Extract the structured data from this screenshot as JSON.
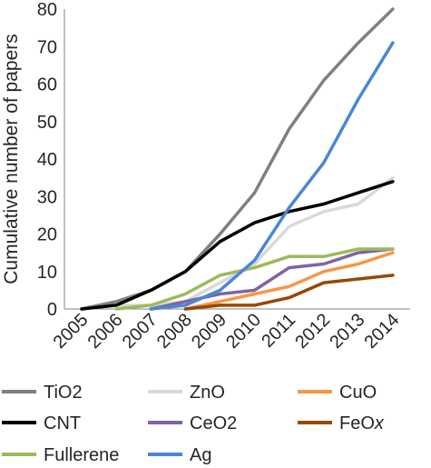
{
  "chart_data": {
    "type": "line",
    "title": "",
    "xlabel": "",
    "ylabel": "Cumulative number of papers",
    "ylim": [
      0,
      80
    ],
    "yticks": [
      0,
      10,
      20,
      30,
      40,
      50,
      60,
      70,
      80
    ],
    "grid": false,
    "legend_position": "bottom",
    "categories": [
      "2005",
      "2006",
      "2007",
      "2008",
      "2009",
      "2010",
      "2011",
      "2012",
      "2013",
      "2014"
    ],
    "series": [
      {
        "name": "TiO2",
        "color": "#808080",
        "values": [
          0,
          2,
          5,
          10,
          20,
          31,
          48,
          61,
          71,
          80
        ]
      },
      {
        "name": "ZnO",
        "color": "#d9d9d9",
        "values": [
          0,
          1,
          1,
          2,
          7,
          12,
          22,
          26,
          28,
          35
        ]
      },
      {
        "name": "CuO",
        "color": "#f79646",
        "values": [
          null,
          null,
          null,
          0,
          2,
          4,
          6,
          10,
          12,
          15
        ]
      },
      {
        "name": "CNT",
        "color": "#000000",
        "values": [
          0,
          1,
          5,
          10,
          18,
          23,
          26,
          28,
          31,
          34
        ]
      },
      {
        "name": "CeO2",
        "color": "#8064a2",
        "values": [
          null,
          null,
          0,
          2,
          4,
          5,
          11,
          12,
          15,
          16
        ]
      },
      {
        "name": "FeOx",
        "color": "#974806",
        "values": [
          null,
          null,
          null,
          0,
          1,
          1,
          3,
          7,
          8,
          9
        ]
      },
      {
        "name": "Fullerene",
        "color": "#9bbb59",
        "values": [
          null,
          0,
          1,
          4,
          9,
          11,
          14,
          14,
          16,
          16
        ]
      },
      {
        "name": "Ag",
        "color": "#4a86d8",
        "values": [
          null,
          null,
          0,
          1,
          5,
          13,
          27,
          39,
          56,
          71
        ]
      }
    ]
  }
}
